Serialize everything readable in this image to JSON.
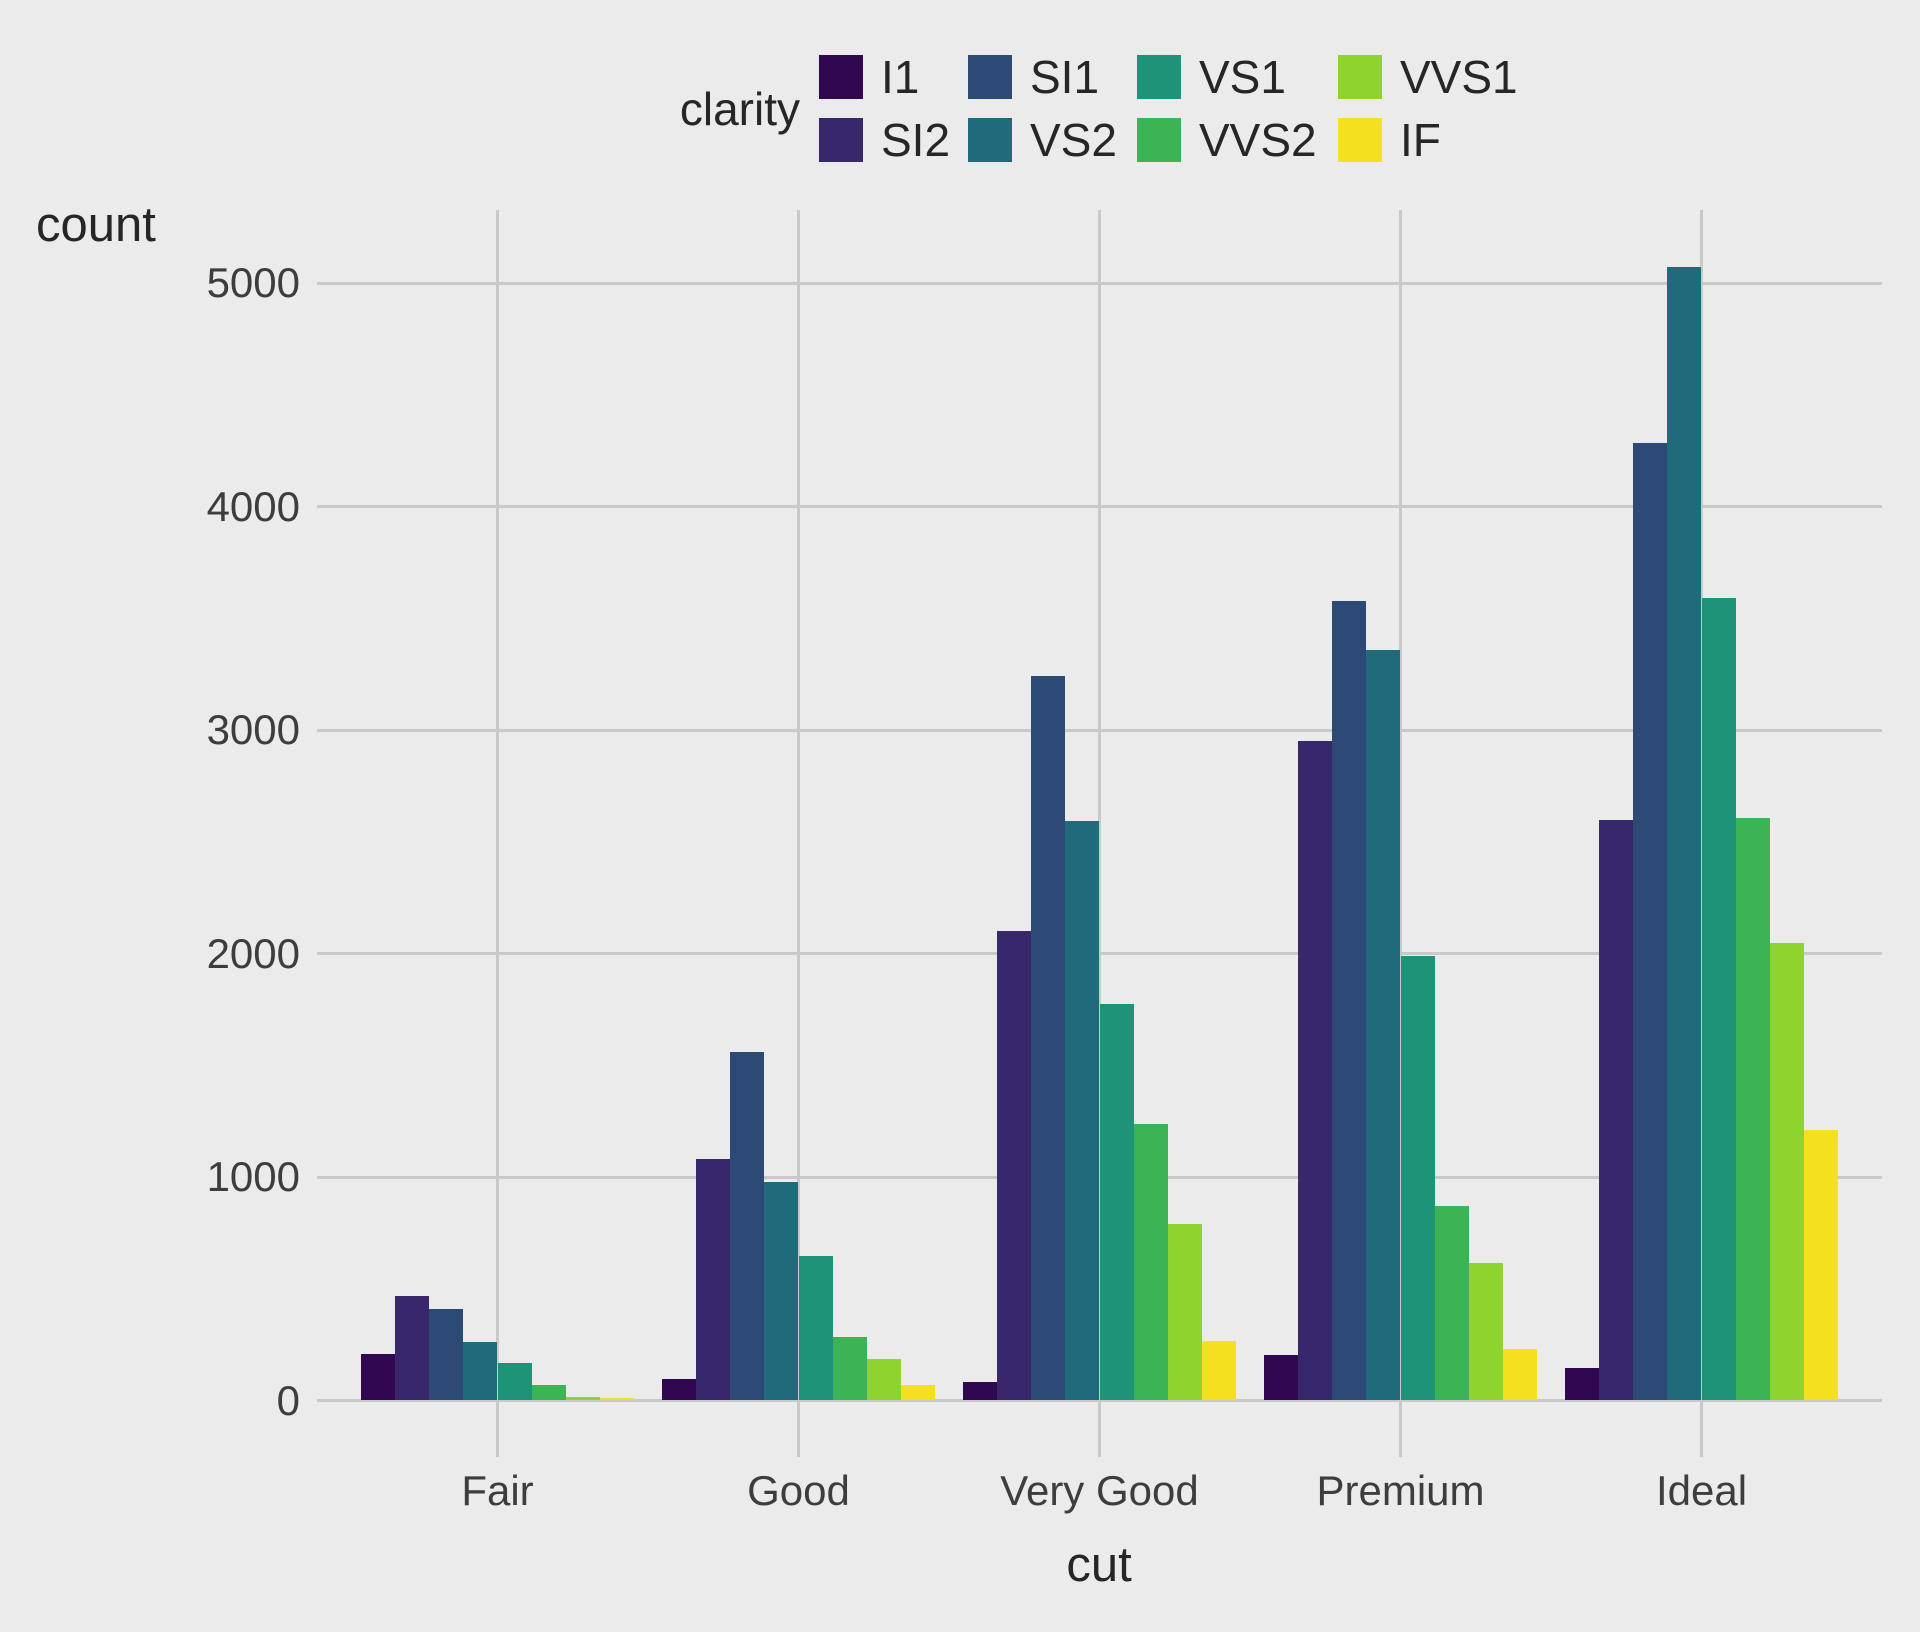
{
  "figure": {
    "background": "#EBEBEB",
    "gridline_color": "#C9C9C9",
    "tick_text_color": "#3D3D3D",
    "title_text_color": "#262626"
  },
  "legend": {
    "title": "clarity",
    "position": "top"
  },
  "axes": {
    "xlabel": "cut",
    "ylabel": "count",
    "x_tick_labels": [
      "Fair",
      "Good",
      "Very Good",
      "Premium",
      "Ideal"
    ],
    "y_tick_labels": [
      "0",
      "1000",
      "2000",
      "3000",
      "4000",
      "5000"
    ]
  },
  "chart_data": {
    "type": "bar",
    "mode": "grouped-dodge",
    "xlabel": "cut",
    "ylabel": "count",
    "legend_title": "clarity",
    "legend_position": "top",
    "grid": "major",
    "categories": [
      "Fair",
      "Good",
      "Very Good",
      "Premium",
      "Ideal"
    ],
    "y_ticks": [
      0,
      1000,
      2000,
      3000,
      4000,
      5000
    ],
    "ylim": [
      0,
      5325
    ],
    "series": [
      {
        "name": "I1",
        "color": "#320751",
        "values": [
          210,
          96,
          84,
          205,
          146
        ]
      },
      {
        "name": "SI2",
        "color": "#38286B",
        "values": [
          466,
          1081,
          2100,
          2949,
          2598
        ]
      },
      {
        "name": "SI1",
        "color": "#2C4A75",
        "values": [
          408,
          1560,
          3240,
          3575,
          4282
        ]
      },
      {
        "name": "VS2",
        "color": "#1F6A7B",
        "values": [
          261,
          978,
          2591,
          3357,
          5071
        ]
      },
      {
        "name": "VS1",
        "color": "#1F9377",
        "values": [
          170,
          648,
          1775,
          1989,
          3589
        ]
      },
      {
        "name": "VVS2",
        "color": "#3CB455",
        "values": [
          69,
          286,
          1235,
          870,
          2606
        ]
      },
      {
        "name": "VVS1",
        "color": "#8FD42E",
        "values": [
          17,
          186,
          789,
          616,
          2047
        ]
      },
      {
        "name": "IF",
        "color": "#F5E01F",
        "values": [
          9,
          71,
          268,
          230,
          1212
        ]
      }
    ]
  }
}
